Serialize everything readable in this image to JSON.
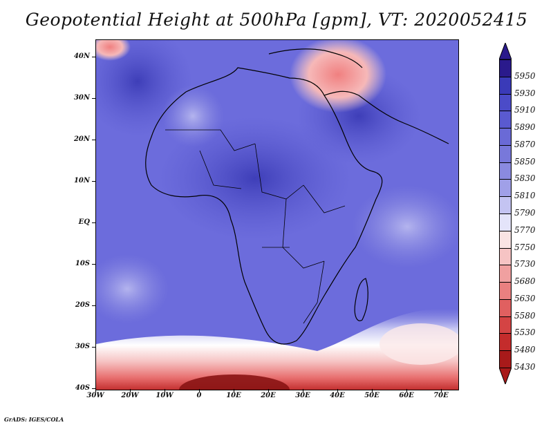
{
  "title": "Geopotential Height at 500hPa [gpm], VT: 2020052415",
  "footer": "GrADS: IGES/COLA",
  "map": {
    "region": "Africa",
    "lat_ticks": [
      "40N",
      "30N",
      "20N",
      "10N",
      "EQ",
      "10S",
      "20S",
      "30S",
      "40S"
    ],
    "lon_ticks": [
      "30W",
      "20W",
      "10W",
      "0",
      "10E",
      "20E",
      "30E",
      "40E",
      "50E",
      "60E",
      "70E"
    ],
    "lat_range": [
      -40,
      45
    ],
    "lon_range": [
      -30,
      75
    ]
  },
  "colorbar": {
    "levels": [
      "5950",
      "5930",
      "5910",
      "5890",
      "5870",
      "5850",
      "5830",
      "5810",
      "5790",
      "5770",
      "5750",
      "5730",
      "5680",
      "5630",
      "5580",
      "5530",
      "5480",
      "5430"
    ],
    "colors": [
      "#2a1a8c",
      "#3a3ab8",
      "#4b4bc8",
      "#5a5ad0",
      "#6a6ad6",
      "#7878da",
      "#8a8ae0",
      "#a0a0e8",
      "#c4c4f2",
      "#e4e4fa",
      "#fae4e4",
      "#f6c4c4",
      "#f0a0a0",
      "#ea8080",
      "#e06060",
      "#d44444",
      "#c42c2c",
      "#a81a1a"
    ]
  }
}
